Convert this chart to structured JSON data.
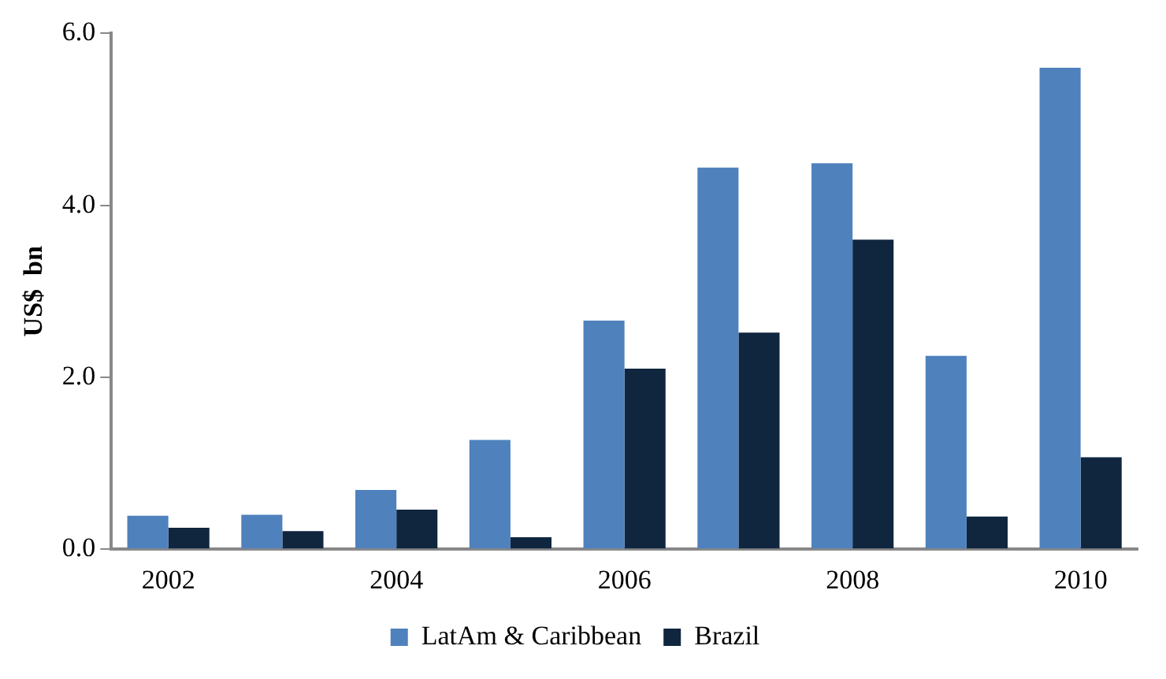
{
  "chart_data": {
    "type": "bar",
    "ylabel": "US$  bn",
    "categories": [
      "2002",
      null,
      "2004",
      null,
      "2006",
      null,
      "2008",
      null,
      "2010"
    ],
    "series": [
      {
        "name": "LatAm & Caribbean",
        "color": "#4f81bd",
        "values": [
          0.39,
          0.4,
          0.69,
          1.27,
          2.66,
          4.44,
          4.49,
          2.25,
          5.6
        ]
      },
      {
        "name": "Brazil",
        "color": "#10263f",
        "values": [
          0.25,
          0.21,
          0.46,
          0.14,
          2.1,
          2.52,
          3.6,
          0.38,
          1.07
        ]
      }
    ],
    "ylim": [
      0,
      6
    ],
    "yticks": [
      {
        "value": 0,
        "label": "0.0"
      },
      {
        "value": 2,
        "label": "2.0"
      },
      {
        "value": 4,
        "label": "4.0"
      },
      {
        "value": 6,
        "label": "6.0"
      }
    ],
    "grid": false,
    "legend": "bottom"
  }
}
